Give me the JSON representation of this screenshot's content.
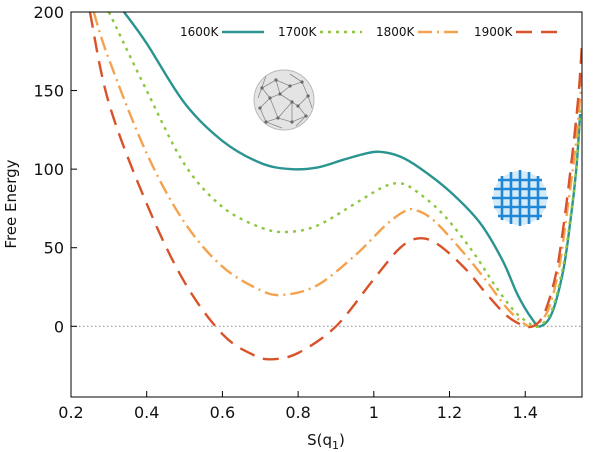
{
  "chart_data": {
    "type": "line",
    "title": "",
    "xlabel": "S(q",
    "xlabel_sub": "1",
    "xlabel_close": ")",
    "ylabel": "Free Energy",
    "xlim": [
      0.2,
      1.55
    ],
    "ylim": [
      -45,
      200
    ],
    "xticks": [
      0.2,
      0.4,
      0.6,
      0.8,
      1.0,
      1.2,
      1.4
    ],
    "xtick_labels": [
      "0.2",
      "0.4",
      "0.6",
      "0.8",
      "1",
      "1.2",
      "1.4"
    ],
    "yticks": [
      0,
      50,
      100,
      150,
      200
    ],
    "ytick_labels": [
      "0",
      "50",
      "100",
      "150",
      "200"
    ],
    "reference_line": {
      "y": 0,
      "style": "dotted",
      "color": "#888888"
    },
    "legend_position": "top-right",
    "series": [
      {
        "name": "1600K",
        "color": "#2a9490",
        "dash": "solid",
        "points": [
          [
            0.34,
            200
          ],
          [
            0.4,
            180
          ],
          [
            0.5,
            142
          ],
          [
            0.6,
            118
          ],
          [
            0.7,
            104
          ],
          [
            0.78,
            100
          ],
          [
            0.85,
            101
          ],
          [
            0.92,
            106
          ],
          [
            0.98,
            110
          ],
          [
            1.02,
            111
          ],
          [
            1.07,
            108
          ],
          [
            1.12,
            101
          ],
          [
            1.2,
            86
          ],
          [
            1.28,
            66
          ],
          [
            1.34,
            42
          ],
          [
            1.38,
            20
          ],
          [
            1.42,
            4
          ],
          [
            1.44,
            0
          ],
          [
            1.47,
            8
          ],
          [
            1.5,
            35
          ],
          [
            1.52,
            68
          ],
          [
            1.535,
            100
          ],
          [
            1.545,
            135
          ]
        ]
      },
      {
        "name": "1700K",
        "color": "#8dc63f",
        "dash": "3,5",
        "points": [
          [
            0.3,
            200
          ],
          [
            0.4,
            150
          ],
          [
            0.5,
            103
          ],
          [
            0.6,
            76
          ],
          [
            0.7,
            63
          ],
          [
            0.77,
            60
          ],
          [
            0.85,
            64
          ],
          [
            0.95,
            78
          ],
          [
            1.02,
            88
          ],
          [
            1.06,
            91
          ],
          [
            1.1,
            88
          ],
          [
            1.18,
            72
          ],
          [
            1.26,
            48
          ],
          [
            1.32,
            26
          ],
          [
            1.37,
            10
          ],
          [
            1.41,
            2
          ],
          [
            1.435,
            0
          ],
          [
            1.47,
            10
          ],
          [
            1.5,
            38
          ],
          [
            1.52,
            70
          ],
          [
            1.535,
            102
          ],
          [
            1.545,
            140
          ]
        ]
      },
      {
        "name": "1800K",
        "color": "#f4a24e",
        "dash": "14,5,2,5",
        "points": [
          [
            0.26,
            200
          ],
          [
            0.3,
            170
          ],
          [
            0.4,
            110
          ],
          [
            0.5,
            66
          ],
          [
            0.6,
            38
          ],
          [
            0.7,
            23
          ],
          [
            0.76,
            20
          ],
          [
            0.85,
            26
          ],
          [
            0.95,
            45
          ],
          [
            1.03,
            64
          ],
          [
            1.08,
            73
          ],
          [
            1.11,
            74
          ],
          [
            1.16,
            67
          ],
          [
            1.24,
            46
          ],
          [
            1.3,
            28
          ],
          [
            1.35,
            12
          ],
          [
            1.39,
            3
          ],
          [
            1.42,
            0
          ],
          [
            1.46,
            10
          ],
          [
            1.49,
            38
          ],
          [
            1.51,
            72
          ],
          [
            1.53,
            108
          ],
          [
            1.545,
            145
          ],
          [
            1.55,
            160
          ]
        ]
      },
      {
        "name": "1900K",
        "color": "#d9532a",
        "dash": "16,9",
        "points": [
          [
            0.25,
            200
          ],
          [
            0.3,
            142
          ],
          [
            0.4,
            78
          ],
          [
            0.5,
            28
          ],
          [
            0.6,
            -5
          ],
          [
            0.68,
            -18
          ],
          [
            0.73,
            -21
          ],
          [
            0.8,
            -17
          ],
          [
            0.9,
            0
          ],
          [
            1.0,
            30
          ],
          [
            1.07,
            50
          ],
          [
            1.12,
            56
          ],
          [
            1.17,
            52
          ],
          [
            1.24,
            37
          ],
          [
            1.3,
            20
          ],
          [
            1.35,
            7
          ],
          [
            1.39,
            1
          ],
          [
            1.42,
            0
          ],
          [
            1.45,
            8
          ],
          [
            1.48,
            32
          ],
          [
            1.5,
            62
          ],
          [
            1.52,
            100
          ],
          [
            1.54,
            145
          ],
          [
            1.55,
            180
          ]
        ]
      }
    ]
  }
}
